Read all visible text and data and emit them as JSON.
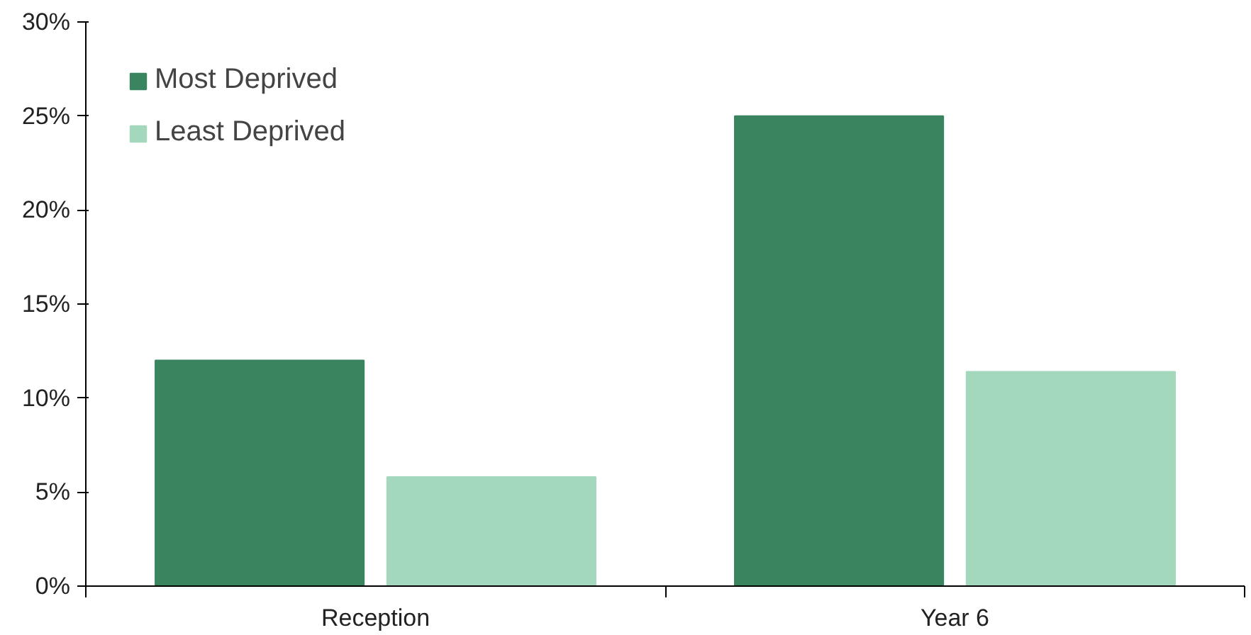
{
  "chart_data": {
    "type": "bar",
    "categories": [
      "Reception",
      "Year 6"
    ],
    "series": [
      {
        "name": "Most Deprived",
        "color": "#3a845f",
        "values": [
          12.0,
          25.0
        ]
      },
      {
        "name": "Least Deprived",
        "color": "#a3d8bd",
        "values": [
          5.8,
          11.4
        ]
      }
    ],
    "ylim": [
      0,
      30
    ],
    "yticks": [
      {
        "value": 0,
        "label": "0%"
      },
      {
        "value": 5,
        "label": "5%"
      },
      {
        "value": 10,
        "label": "10%"
      },
      {
        "value": 15,
        "label": "15%"
      },
      {
        "value": 20,
        "label": "20%"
      },
      {
        "value": 25,
        "label": "25%"
      },
      {
        "value": 30,
        "label": "30%"
      }
    ],
    "grid": false,
    "legend": "top left"
  }
}
